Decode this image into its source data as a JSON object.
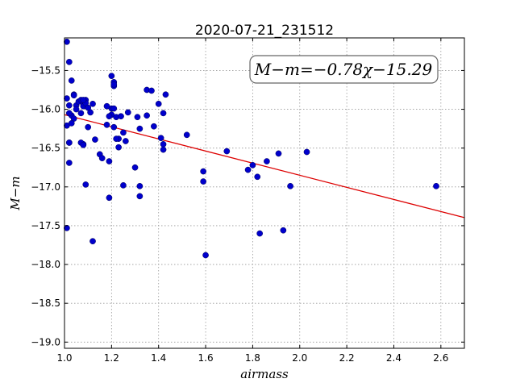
{
  "chart_data": {
    "type": "scatter",
    "title": "2020-07-21_231512",
    "xlabel": "airmass",
    "ylabel": "M−m",
    "xlim": [
      1.0,
      2.7
    ],
    "ylim": [
      -19.08,
      -15.08
    ],
    "grid": true,
    "x_ticks": [
      1.0,
      1.2,
      1.4,
      1.6,
      1.8,
      2.0,
      2.2,
      2.4,
      2.6
    ],
    "x_tick_labels": [
      "1.0",
      "1.2",
      "1.4",
      "1.6",
      "1.8",
      "2.0",
      "2.2",
      "2.4",
      "2.6"
    ],
    "y_ticks": [
      -15.5,
      -16.0,
      -16.5,
      -17.0,
      -17.5,
      -18.0,
      -18.5,
      -19.0
    ],
    "y_tick_labels": [
      "−15.5",
      "−16.0",
      "−16.5",
      "−17.0",
      "−17.5",
      "−18.0",
      "−18.5",
      "−19.0"
    ],
    "annotation": "M−m=−0.78χ−15.29",
    "annotation_placement": "top-right",
    "colors": {
      "points": "#0000cc",
      "fit_line": "#dd0000",
      "grid": "#999999"
    },
    "fit_line": {
      "slope": -0.78,
      "intercept": -15.29
    },
    "series": [
      {
        "x": [
          1.01,
          1.02,
          1.01,
          1.02,
          1.01,
          1.03,
          1.04,
          1.04,
          1.02,
          1.03,
          1.05,
          1.06,
          1.07,
          1.07,
          1.08,
          1.08,
          1.09,
          1.09,
          1.1,
          1.11,
          1.12,
          1.08,
          1.1,
          1.05,
          1.04,
          1.03,
          1.02,
          1.02,
          1.07,
          1.08,
          1.02,
          1.09,
          1.13,
          1.15,
          1.16,
          1.18,
          1.19,
          1.2,
          1.2,
          1.21,
          1.21,
          1.21,
          1.22,
          1.23,
          1.23,
          1.24,
          1.25,
          1.26,
          1.27,
          1.18,
          1.19,
          1.19,
          1.21,
          1.22,
          1.25,
          1.3,
          1.31,
          1.32,
          1.32,
          1.32,
          1.35,
          1.35,
          1.37,
          1.38,
          1.4,
          1.41,
          1.42,
          1.42,
          1.42,
          1.43,
          1.52,
          1.59,
          1.59,
          1.6,
          1.69,
          1.78,
          1.8,
          1.82,
          1.83,
          1.86,
          1.91,
          1.93,
          1.96,
          2.03,
          2.58,
          1.12,
          1.01,
          1.2,
          1.21,
          1.08
        ],
        "y": [
          -15.13,
          -15.39,
          -15.86,
          -15.95,
          -16.21,
          -16.08,
          -16.12,
          -15.81,
          -16.43,
          -15.63,
          -15.95,
          -15.9,
          -16.05,
          -15.88,
          -15.93,
          -15.96,
          -15.88,
          -15.92,
          -16.23,
          -16.04,
          -15.93,
          -16.45,
          -15.98,
          -16.0,
          -15.82,
          -16.18,
          -16.69,
          -16.43,
          -16.43,
          -16.46,
          -16.05,
          -16.97,
          -16.39,
          -16.58,
          -16.63,
          -16.2,
          -16.67,
          -16.07,
          -15.99,
          -15.99,
          -15.7,
          -15.65,
          -16.1,
          -16.38,
          -16.49,
          -16.09,
          -16.3,
          -16.41,
          -16.04,
          -15.96,
          -16.09,
          -17.14,
          -16.23,
          -16.38,
          -16.98,
          -16.75,
          -16.1,
          -16.25,
          -17.12,
          -16.99,
          -15.75,
          -16.08,
          -15.76,
          -16.22,
          -15.93,
          -16.37,
          -16.45,
          -16.52,
          -16.05,
          -15.81,
          -16.33,
          -16.8,
          -16.93,
          -17.88,
          -16.54,
          -16.78,
          -16.72,
          -16.87,
          -17.6,
          -16.67,
          -16.57,
          -17.56,
          -16.99,
          -16.55,
          -16.99,
          -17.7,
          -17.53,
          -15.57,
          -15.68,
          -15.88
        ]
      }
    ]
  }
}
